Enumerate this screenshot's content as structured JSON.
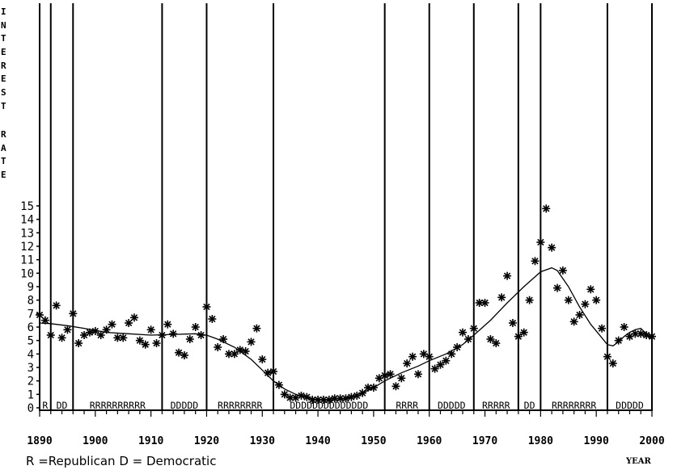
{
  "chart_data": {
    "type": "scatter",
    "title": "",
    "ylabel_top": "INTEREST",
    "ylabel_bottom": "RATE",
    "xlabel": "YEAR",
    "note": "R =Republican D = Democratic",
    "xlim": [
      1890,
      2000
    ],
    "ylim": [
      0,
      15
    ],
    "xticks": [
      1890,
      1900,
      1910,
      1920,
      1930,
      1940,
      1950,
      1960,
      1970,
      1980,
      1990,
      2000
    ],
    "yticks": [
      0,
      1,
      2,
      3,
      4,
      5,
      6,
      7,
      8,
      9,
      10,
      11,
      12,
      13,
      14,
      15
    ],
    "term_boundaries": [
      1892,
      1896,
      1912,
      1920,
      1932,
      1952,
      1960,
      1968,
      1976,
      1980,
      1992
    ],
    "party_labels": [
      {
        "x": 1891,
        "text": "R"
      },
      {
        "x": 1894,
        "text": "DD"
      },
      {
        "x": 1904,
        "text": "RRRRRRRRRR"
      },
      {
        "x": 1916,
        "text": "DDDDD"
      },
      {
        "x": 1926,
        "text": "RRRRRRRR"
      },
      {
        "x": 1942,
        "text": "DDDDDDDDDDDDDD"
      },
      {
        "x": 1956,
        "text": "RRRR"
      },
      {
        "x": 1964,
        "text": "DDDDD"
      },
      {
        "x": 1972,
        "text": "RRRRR"
      },
      {
        "x": 1978,
        "text": "DD"
      },
      {
        "x": 1986,
        "text": "RRRRRRRR"
      },
      {
        "x": 1996,
        "text": "DDDDD"
      }
    ],
    "series": [
      {
        "marker": "asterisk",
        "x": [
          1890,
          1891,
          1892,
          1893,
          1894,
          1895,
          1896,
          1897,
          1898,
          1899,
          1900,
          1901,
          1902,
          1903,
          1904,
          1905,
          1906,
          1907,
          1908,
          1909,
          1910,
          1911,
          1912,
          1913,
          1914,
          1915,
          1916,
          1917,
          1918,
          1919,
          1920,
          1921,
          1922,
          1923,
          1924,
          1925,
          1926,
          1927,
          1928,
          1929,
          1930,
          1931,
          1932,
          1933,
          1934,
          1935,
          1936,
          1937,
          1938,
          1939,
          1940,
          1941,
          1942,
          1943,
          1944,
          1945,
          1946,
          1947,
          1948,
          1949,
          1950,
          1951,
          1952,
          1953,
          1954,
          1955,
          1956,
          1957,
          1958,
          1959,
          1960,
          1961,
          1962,
          1963,
          1964,
          1965,
          1966,
          1967,
          1968,
          1969,
          1970,
          1971,
          1972,
          1973,
          1974,
          1975,
          1976,
          1977,
          1978,
          1979,
          1980,
          1981,
          1982,
          1983,
          1984,
          1985,
          1986,
          1987,
          1988,
          1989,
          1990,
          1991,
          1992,
          1993,
          1994,
          1995,
          1996,
          1997,
          1998,
          1999,
          2000
        ],
        "y": [
          6.9,
          6.5,
          5.4,
          7.6,
          5.2,
          5.8,
          7.0,
          4.8,
          5.4,
          5.6,
          5.7,
          5.4,
          5.8,
          6.2,
          5.2,
          5.2,
          6.3,
          6.7,
          5.0,
          4.7,
          5.8,
          4.8,
          5.4,
          6.2,
          5.5,
          4.1,
          3.9,
          5.1,
          6.0,
          5.4,
          7.5,
          6.6,
          4.5,
          5.1,
          4.0,
          4.0,
          4.3,
          4.2,
          4.9,
          5.9,
          3.6,
          2.6,
          2.7,
          1.7,
          1.0,
          0.75,
          0.75,
          0.9,
          0.8,
          0.6,
          0.6,
          0.6,
          0.6,
          0.7,
          0.7,
          0.7,
          0.8,
          0.9,
          1.1,
          1.5,
          1.5,
          2.2,
          2.4,
          2.5,
          1.6,
          2.2,
          3.3,
          3.8,
          2.5,
          4.0,
          3.8,
          2.9,
          3.2,
          3.5,
          4.0,
          4.5,
          5.6,
          5.1,
          5.9,
          7.8,
          7.8,
          5.1,
          4.8,
          8.2,
          9.8,
          6.3,
          5.3,
          5.6,
          8.0,
          10.9,
          12.3,
          14.8,
          11.9,
          8.9,
          10.2,
          8.0,
          6.4,
          6.9,
          7.7,
          8.8,
          8.0,
          5.9,
          3.8,
          3.3,
          5.0,
          6.0,
          5.3,
          5.5,
          5.5,
          5.4,
          5.3
        ]
      }
    ],
    "smooth_curve": {
      "x": [
        1890,
        1892,
        1895,
        1898,
        1902,
        1906,
        1910,
        1914,
        1918,
        1920,
        1922,
        1925,
        1928,
        1930,
        1932,
        1934,
        1936,
        1938,
        1940,
        1942,
        1944,
        1946,
        1948,
        1950,
        1952,
        1955,
        1958,
        1960,
        1963,
        1966,
        1968,
        1971,
        1974,
        1977,
        1980,
        1982,
        1983,
        1985,
        1987,
        1989,
        1991,
        1992,
        1993,
        1994,
        1995,
        1996,
        1997,
        1998,
        1999,
        2000
      ],
      "y": [
        6.3,
        6.25,
        6.1,
        5.9,
        5.6,
        5.5,
        5.4,
        5.45,
        5.5,
        5.4,
        5.1,
        4.5,
        3.6,
        2.8,
        2.0,
        1.4,
        1.0,
        0.75,
        0.6,
        0.55,
        0.6,
        0.8,
        1.1,
        1.5,
        2.0,
        2.6,
        3.1,
        3.5,
        4.0,
        4.7,
        5.4,
        6.5,
        7.8,
        9.0,
        10.1,
        10.4,
        10.2,
        9.0,
        7.5,
        6.2,
        5.2,
        4.7,
        4.6,
        4.9,
        5.3,
        5.6,
        5.8,
        5.9,
        5.5,
        5.1
      ]
    }
  }
}
